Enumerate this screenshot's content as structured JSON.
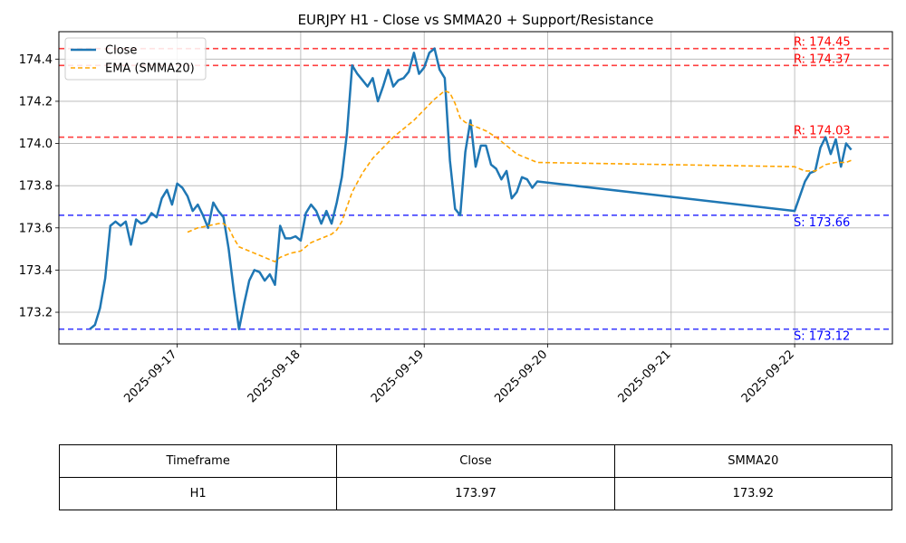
{
  "chart_data": {
    "type": "line",
    "title": "EURJPY H1 - Close vs SMMA20 + Support/Resistance",
    "xlabel": "",
    "ylabel": "",
    "x_ticks": [
      "2025-09-17",
      "2025-09-18",
      "2025-09-19",
      "2025-09-20",
      "2025-09-21",
      "2025-09-22"
    ],
    "y_ticks": [
      "173.2",
      "173.4",
      "173.6",
      "173.8",
      "174.0",
      "174.2",
      "174.4"
    ],
    "xlim": [
      "2025-09-16T01:00",
      "2025-09-22T19:00"
    ],
    "ylim": [
      173.05,
      174.53
    ],
    "grid": true,
    "legend": "top-left",
    "series": [
      {
        "name": "Close",
        "color": "#1f77b4",
        "style": "solid",
        "points": [
          [
            "2025-09-16T07:00",
            173.12
          ],
          [
            "2025-09-16T08:00",
            173.14
          ],
          [
            "2025-09-16T09:00",
            173.22
          ],
          [
            "2025-09-16T10:00",
            173.36
          ],
          [
            "2025-09-16T11:00",
            173.61
          ],
          [
            "2025-09-16T12:00",
            173.63
          ],
          [
            "2025-09-16T13:00",
            173.61
          ],
          [
            "2025-09-16T14:00",
            173.63
          ],
          [
            "2025-09-16T15:00",
            173.52
          ],
          [
            "2025-09-16T16:00",
            173.64
          ],
          [
            "2025-09-16T17:00",
            173.62
          ],
          [
            "2025-09-16T18:00",
            173.63
          ],
          [
            "2025-09-16T19:00",
            173.67
          ],
          [
            "2025-09-16T20:00",
            173.65
          ],
          [
            "2025-09-16T21:00",
            173.74
          ],
          [
            "2025-09-16T22:00",
            173.78
          ],
          [
            "2025-09-16T23:00",
            173.71
          ],
          [
            "2025-09-17T00:00",
            173.81
          ],
          [
            "2025-09-17T01:00",
            173.79
          ],
          [
            "2025-09-17T02:00",
            173.75
          ],
          [
            "2025-09-17T03:00",
            173.68
          ],
          [
            "2025-09-17T04:00",
            173.71
          ],
          [
            "2025-09-17T05:00",
            173.66
          ],
          [
            "2025-09-17T06:00",
            173.6
          ],
          [
            "2025-09-17T07:00",
            173.72
          ],
          [
            "2025-09-17T08:00",
            173.68
          ],
          [
            "2025-09-17T09:00",
            173.65
          ],
          [
            "2025-09-17T10:00",
            173.5
          ],
          [
            "2025-09-17T11:00",
            173.3
          ],
          [
            "2025-09-17T12:00",
            173.12
          ],
          [
            "2025-09-17T13:00",
            173.24
          ],
          [
            "2025-09-17T14:00",
            173.35
          ],
          [
            "2025-09-17T15:00",
            173.4
          ],
          [
            "2025-09-17T16:00",
            173.39
          ],
          [
            "2025-09-17T17:00",
            173.35
          ],
          [
            "2025-09-17T18:00",
            173.38
          ],
          [
            "2025-09-17T19:00",
            173.33
          ],
          [
            "2025-09-17T20:00",
            173.61
          ],
          [
            "2025-09-17T21:00",
            173.55
          ],
          [
            "2025-09-17T22:00",
            173.55
          ],
          [
            "2025-09-17T23:00",
            173.56
          ],
          [
            "2025-09-18T00:00",
            173.54
          ],
          [
            "2025-09-18T01:00",
            173.67
          ],
          [
            "2025-09-18T02:00",
            173.71
          ],
          [
            "2025-09-18T03:00",
            173.68
          ],
          [
            "2025-09-18T04:00",
            173.62
          ],
          [
            "2025-09-18T05:00",
            173.68
          ],
          [
            "2025-09-18T06:00",
            173.62
          ],
          [
            "2025-09-18T07:00",
            173.72
          ],
          [
            "2025-09-18T08:00",
            173.84
          ],
          [
            "2025-09-18T09:00",
            174.05
          ],
          [
            "2025-09-18T10:00",
            174.37
          ],
          [
            "2025-09-18T11:00",
            174.33
          ],
          [
            "2025-09-18T12:00",
            174.3
          ],
          [
            "2025-09-18T13:00",
            174.27
          ],
          [
            "2025-09-18T14:00",
            174.31
          ],
          [
            "2025-09-18T15:00",
            174.2
          ],
          [
            "2025-09-18T16:00",
            174.27
          ],
          [
            "2025-09-18T17:00",
            174.35
          ],
          [
            "2025-09-18T18:00",
            174.27
          ],
          [
            "2025-09-18T19:00",
            174.3
          ],
          [
            "2025-09-18T20:00",
            174.31
          ],
          [
            "2025-09-18T21:00",
            174.34
          ],
          [
            "2025-09-18T22:00",
            174.43
          ],
          [
            "2025-09-18T23:00",
            174.33
          ],
          [
            "2025-09-19T00:00",
            174.36
          ],
          [
            "2025-09-19T01:00",
            174.43
          ],
          [
            "2025-09-19T02:00",
            174.45
          ],
          [
            "2025-09-19T03:00",
            174.35
          ],
          [
            "2025-09-19T04:00",
            174.31
          ],
          [
            "2025-09-19T05:00",
            173.92
          ],
          [
            "2025-09-19T06:00",
            173.69
          ],
          [
            "2025-09-19T07:00",
            173.66
          ],
          [
            "2025-09-19T08:00",
            173.96
          ],
          [
            "2025-09-19T09:00",
            174.11
          ],
          [
            "2025-09-19T10:00",
            173.89
          ],
          [
            "2025-09-19T11:00",
            173.99
          ],
          [
            "2025-09-19T12:00",
            173.99
          ],
          [
            "2025-09-19T13:00",
            173.9
          ],
          [
            "2025-09-19T14:00",
            173.88
          ],
          [
            "2025-09-19T15:00",
            173.83
          ],
          [
            "2025-09-19T16:00",
            173.87
          ],
          [
            "2025-09-19T17:00",
            173.74
          ],
          [
            "2025-09-19T18:00",
            173.77
          ],
          [
            "2025-09-19T19:00",
            173.84
          ],
          [
            "2025-09-19T20:00",
            173.83
          ],
          [
            "2025-09-19T21:00",
            173.79
          ],
          [
            "2025-09-19T22:00",
            173.82
          ],
          [
            "2025-09-22T00:00",
            173.68
          ],
          [
            "2025-09-22T01:00",
            173.75
          ],
          [
            "2025-09-22T02:00",
            173.82
          ],
          [
            "2025-09-22T03:00",
            173.86
          ],
          [
            "2025-09-22T04:00",
            173.87
          ],
          [
            "2025-09-22T05:00",
            173.98
          ],
          [
            "2025-09-22T06:00",
            174.03
          ],
          [
            "2025-09-22T07:00",
            173.95
          ],
          [
            "2025-09-22T08:00",
            174.02
          ],
          [
            "2025-09-22T09:00",
            173.89
          ],
          [
            "2025-09-22T10:00",
            174.0
          ],
          [
            "2025-09-22T11:00",
            173.97
          ]
        ]
      },
      {
        "name": "EMA (SMMA20)",
        "color": "#ffa500",
        "style": "dashed",
        "points": [
          [
            "2025-09-17T02:00",
            173.58
          ],
          [
            "2025-09-17T04:00",
            173.6
          ],
          [
            "2025-09-17T06:00",
            173.61
          ],
          [
            "2025-09-17T08:00",
            173.62
          ],
          [
            "2025-09-17T09:00",
            173.62
          ],
          [
            "2025-09-17T10:00",
            173.6
          ],
          [
            "2025-09-17T11:00",
            173.55
          ],
          [
            "2025-09-17T12:00",
            173.51
          ],
          [
            "2025-09-17T14:00",
            173.49
          ],
          [
            "2025-09-17T16:00",
            173.47
          ],
          [
            "2025-09-17T18:00",
            173.45
          ],
          [
            "2025-09-17T19:00",
            173.44
          ],
          [
            "2025-09-17T20:00",
            173.46
          ],
          [
            "2025-09-17T22:00",
            173.48
          ],
          [
            "2025-09-18T00:00",
            173.49
          ],
          [
            "2025-09-18T02:00",
            173.53
          ],
          [
            "2025-09-18T04:00",
            173.55
          ],
          [
            "2025-09-18T06:00",
            173.57
          ],
          [
            "2025-09-18T07:00",
            173.59
          ],
          [
            "2025-09-18T08:00",
            173.63
          ],
          [
            "2025-09-18T09:00",
            173.7
          ],
          [
            "2025-09-18T10:00",
            173.77
          ],
          [
            "2025-09-18T12:00",
            173.86
          ],
          [
            "2025-09-18T14:00",
            173.93
          ],
          [
            "2025-09-18T16:00",
            173.98
          ],
          [
            "2025-09-18T18:00",
            174.03
          ],
          [
            "2025-09-18T20:00",
            174.07
          ],
          [
            "2025-09-18T22:00",
            174.11
          ],
          [
            "2025-09-19T00:00",
            174.16
          ],
          [
            "2025-09-19T02:00",
            174.21
          ],
          [
            "2025-09-19T04:00",
            174.25
          ],
          [
            "2025-09-19T05:00",
            174.24
          ],
          [
            "2025-09-19T06:00",
            174.19
          ],
          [
            "2025-09-19T07:00",
            174.12
          ],
          [
            "2025-09-19T08:00",
            174.1
          ],
          [
            "2025-09-19T09:00",
            174.09
          ],
          [
            "2025-09-19T10:00",
            174.08
          ],
          [
            "2025-09-19T12:00",
            174.06
          ],
          [
            "2025-09-19T14:00",
            174.03
          ],
          [
            "2025-09-19T16:00",
            173.99
          ],
          [
            "2025-09-19T18:00",
            173.95
          ],
          [
            "2025-09-19T20:00",
            173.93
          ],
          [
            "2025-09-19T22:00",
            173.91
          ],
          [
            "2025-09-22T00:00",
            173.89
          ],
          [
            "2025-09-22T02:00",
            173.87
          ],
          [
            "2025-09-22T04:00",
            173.87
          ],
          [
            "2025-09-22T06:00",
            173.9
          ],
          [
            "2025-09-22T08:00",
            173.91
          ],
          [
            "2025-09-22T10:00",
            173.91
          ],
          [
            "2025-09-22T11:00",
            173.92
          ]
        ]
      }
    ],
    "levels": [
      {
        "kind": "resistance",
        "value": 174.45,
        "label": "R: 174.45",
        "color": "#ff0000"
      },
      {
        "kind": "resistance",
        "value": 174.37,
        "label": "R: 174.37",
        "color": "#ff0000"
      },
      {
        "kind": "resistance",
        "value": 174.03,
        "label": "R: 174.03",
        "color": "#ff0000"
      },
      {
        "kind": "support",
        "value": 173.66,
        "label": "S: 173.66",
        "color": "#0000ff"
      },
      {
        "kind": "support",
        "value": 173.12,
        "label": "S: 173.12",
        "color": "#0000ff"
      }
    ]
  },
  "table": {
    "headers": [
      "Timeframe",
      "Close",
      "SMMA20"
    ],
    "rows": [
      [
        "H1",
        "173.97",
        "173.92"
      ]
    ]
  }
}
